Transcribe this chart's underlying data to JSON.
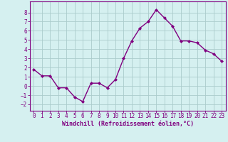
{
  "x": [
    0,
    1,
    2,
    3,
    4,
    5,
    6,
    7,
    8,
    9,
    10,
    11,
    12,
    13,
    14,
    15,
    16,
    17,
    18,
    19,
    20,
    21,
    22,
    23
  ],
  "y": [
    1.8,
    1.1,
    1.1,
    -0.2,
    -0.2,
    -1.2,
    -1.7,
    0.3,
    0.3,
    -0.2,
    0.7,
    3.0,
    4.9,
    6.3,
    7.0,
    8.3,
    7.4,
    6.5,
    4.9,
    4.9,
    4.7,
    3.9,
    3.5,
    2.7
  ],
  "line_color": "#800080",
  "marker": "D",
  "marker_size": 2.0,
  "bg_color": "#d5f0f0",
  "grid_color": "#aacccc",
  "xlabel": "Windchill (Refroidissement éolien,°C)",
  "xlabel_color": "#800080",
  "tick_color": "#800080",
  "spine_color": "#800080",
  "ylim": [
    -2.7,
    9.2
  ],
  "xlim": [
    -0.5,
    23.5
  ],
  "yticks": [
    -2,
    -1,
    0,
    1,
    2,
    3,
    4,
    5,
    6,
    7,
    8
  ],
  "xticks": [
    0,
    1,
    2,
    3,
    4,
    5,
    6,
    7,
    8,
    9,
    10,
    11,
    12,
    13,
    14,
    15,
    16,
    17,
    18,
    19,
    20,
    21,
    22,
    23
  ],
  "tick_fontsize": 5.5,
  "xlabel_fontsize": 6.0,
  "linewidth": 1.0
}
